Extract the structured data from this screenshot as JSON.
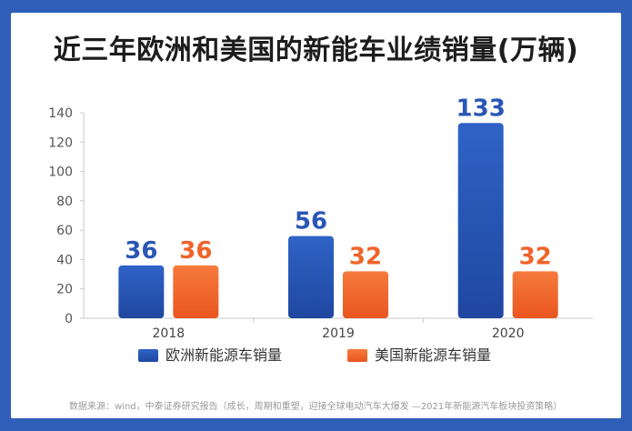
{
  "chart_data": {
    "type": "bar",
    "title": "近三年欧洲和美国的新能车业绩销量(万辆)",
    "categories": [
      "2018",
      "2019",
      "2020"
    ],
    "series": [
      {
        "name": "欧洲新能源车销量",
        "values": [
          36,
          56,
          133
        ],
        "color": "#2a56b5"
      },
      {
        "name": "美国新能源车销量",
        "values": [
          36,
          32,
          32
        ],
        "color": "#f0642a"
      }
    ],
    "y_ticks": [
      0,
      20,
      40,
      60,
      80,
      100,
      120,
      140
    ],
    "ylim": [
      0,
      140
    ],
    "grid": false,
    "legend": "bottom-center"
  },
  "source": "数据来源：wind，中泰证券研究报告（成长，周期和重塑，迎接全球电动汽车大爆发 —2021年新能源汽车板块投资策略）"
}
